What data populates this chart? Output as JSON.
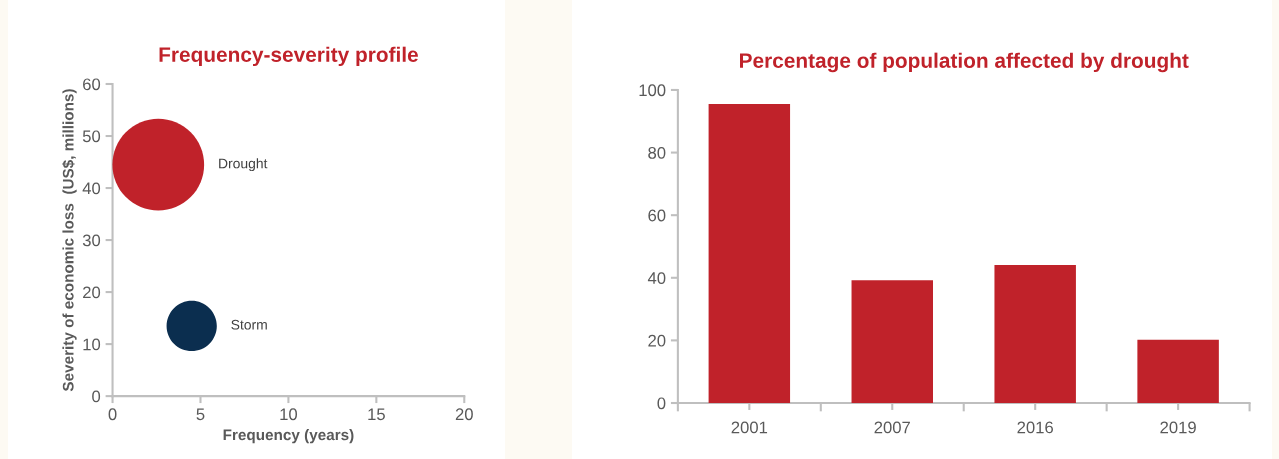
{
  "chart_data": [
    {
      "type": "bubble",
      "title": "Frequency-severity profile",
      "xlabel": "Frequency (years)",
      "ylabel": "Severity of economic loss  (US$, millions)",
      "series": [
        {
          "name": "Drought",
          "color": "#c0222a",
          "x": [
            2.6
          ],
          "values": [
            44.5
          ],
          "sizes": [
            1
          ]
        },
        {
          "name": "Storm",
          "color": "#0b2e4f",
          "x": [
            4.5
          ],
          "values": [
            13.5
          ],
          "sizes": [
            0.3
          ]
        }
      ],
      "xlim": [
        0,
        20
      ],
      "xticks": [
        0,
        5,
        10,
        15,
        20
      ],
      "ylim": [
        0,
        60
      ],
      "yticks": [
        0,
        10,
        20,
        30,
        40,
        50,
        60
      ],
      "grid": false,
      "legend": false
    },
    {
      "type": "bar",
      "title": "Percentage of population affected by drought",
      "categories": [
        "2001",
        "2007",
        "2016",
        "2019"
      ],
      "values": [
        95.5,
        39.2,
        44.1,
        20.2
      ],
      "color": "#c0222a",
      "ylim": [
        0,
        100
      ],
      "yticks": [
        0,
        20,
        40,
        60,
        80,
        100
      ],
      "grid": false,
      "legend": false
    }
  ]
}
